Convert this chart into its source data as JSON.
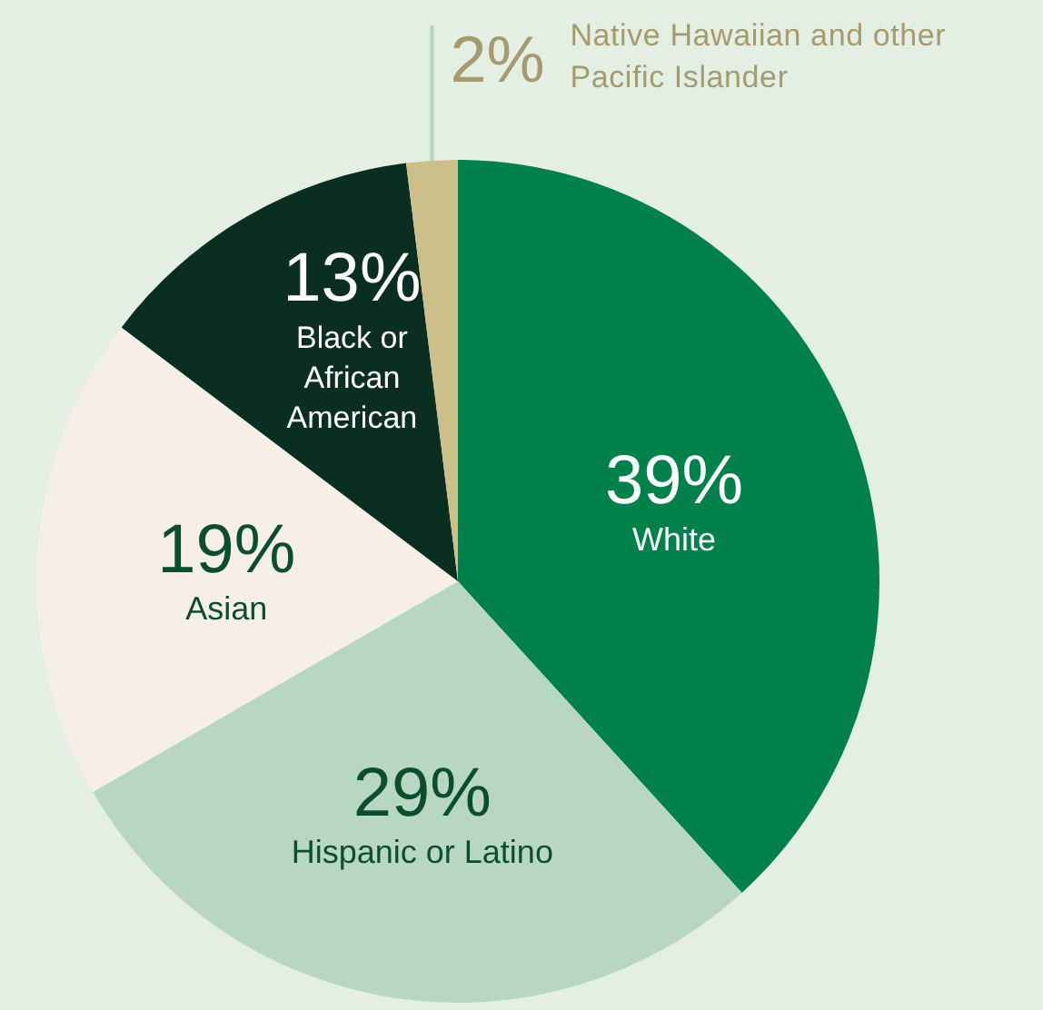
{
  "chart_data": {
    "type": "pie",
    "categories": [
      "White",
      "Hispanic or Latino",
      "Asian",
      "Black or African American",
      "Native Hawaiian and other Pacific Islander"
    ],
    "values": [
      39,
      29,
      19,
      13,
      2
    ],
    "value_labels": [
      "39%",
      "29%",
      "19%",
      "13%",
      "2%"
    ],
    "colors": [
      "#00804a",
      "#b8d6c4",
      "#f5efe6",
      "#0b2e22",
      "#cdbf8a"
    ],
    "legend": false
  }
}
